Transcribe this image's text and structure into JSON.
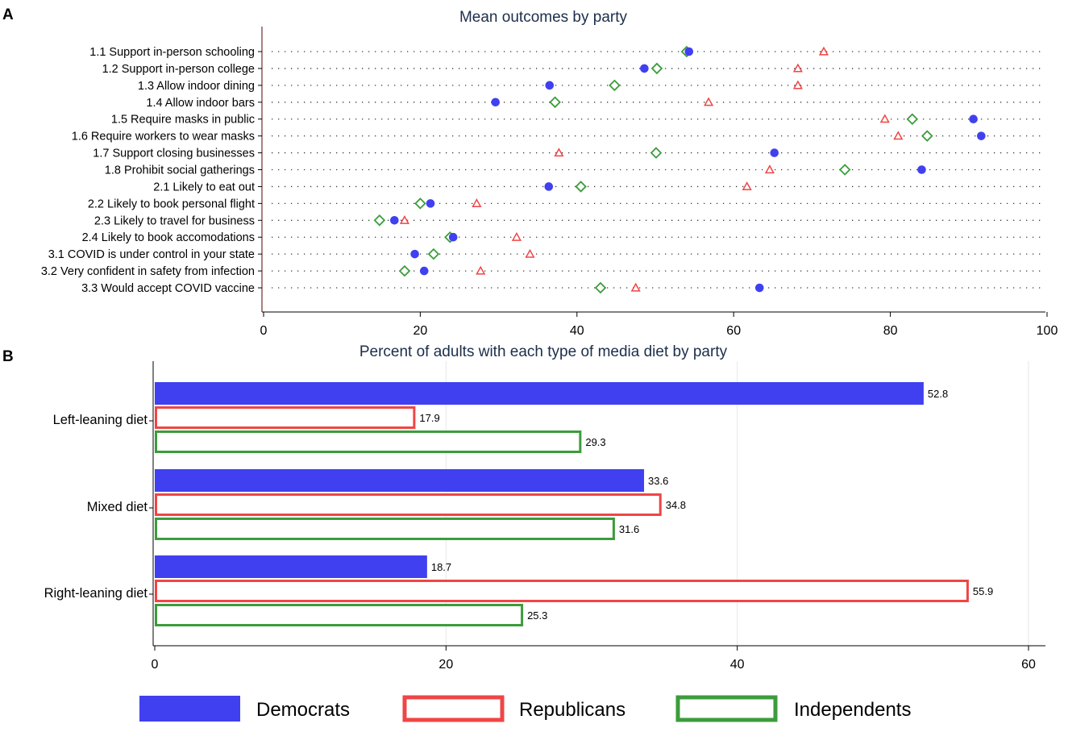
{
  "chart_data": [
    {
      "panel": "A",
      "type": "scatter",
      "subtype": "dot-plot",
      "title": "Mean outcomes by party",
      "xlim": [
        0,
        100
      ],
      "xticks": [
        0,
        20,
        40,
        60,
        80,
        100
      ],
      "categories": [
        "1.1 Support in-person schooling",
        "1.2 Support in-person college",
        "1.3 Allow indoor dining",
        "1.4 Allow indoor bars",
        "1.5 Require masks in public",
        "1.6 Require workers to wear masks",
        "1.7 Support closing businesses",
        "1.8 Prohibit social gatherings",
        "2.1 Likely to eat out",
        "2.2 Likely to book personal flight",
        "2.3 Likely to travel for business",
        "2.4 Likely to book accomodations",
        "3.1 COVID is under control in your state",
        "3.2 Very confident in safety from infection",
        "3.3 Would accept COVID vaccine"
      ],
      "series": [
        {
          "name": "Democrats",
          "values": [
            54.3,
            48.6,
            36.5,
            29.6,
            90.6,
            91.6,
            65.2,
            84.0,
            36.4,
            21.3,
            16.7,
            24.2,
            19.3,
            20.5,
            63.3
          ]
        },
        {
          "name": "Republicans",
          "values": [
            71.5,
            68.2,
            68.2,
            56.8,
            79.3,
            81.0,
            37.7,
            64.6,
            61.7,
            27.2,
            18.0,
            32.3,
            34.0,
            27.7,
            47.5
          ]
        },
        {
          "name": "Independents",
          "values": [
            54.0,
            50.2,
            44.8,
            37.2,
            82.8,
            84.7,
            50.1,
            74.2,
            40.5,
            20.0,
            14.8,
            23.8,
            21.7,
            18.0,
            43.0
          ]
        }
      ]
    },
    {
      "panel": "B",
      "type": "bar",
      "orientation": "horizontal",
      "title": "Percent of adults with each type of media diet by party",
      "xlim": [
        0,
        60
      ],
      "xticks": [
        0,
        20,
        40,
        60
      ],
      "categories": [
        "Left-leaning diet",
        "Mixed diet",
        "Right-leaning diet"
      ],
      "series": [
        {
          "name": "Democrats",
          "values": [
            52.8,
            33.6,
            18.7
          ],
          "labels": [
            "52.8",
            "33.6",
            "18.7"
          ]
        },
        {
          "name": "Republicans",
          "values": [
            17.9,
            34.8,
            55.9
          ],
          "labels": [
            "17.9",
            "34.8",
            "55.9"
          ]
        },
        {
          "name": "Independents",
          "values": [
            29.3,
            31.6,
            25.3
          ],
          "labels": [
            "29.3",
            "31.6",
            "25.3"
          ]
        }
      ]
    }
  ],
  "legend": [
    "Democrats",
    "Republicans",
    "Independents"
  ],
  "colors": {
    "Democrats": "#4040f0",
    "Republicans": "#f04545",
    "Independents": "#3c9c3c",
    "axis": "#000000",
    "grid": "#e6e6e6",
    "dots": "#3a3a3a",
    "title": "#1c2e4a"
  }
}
